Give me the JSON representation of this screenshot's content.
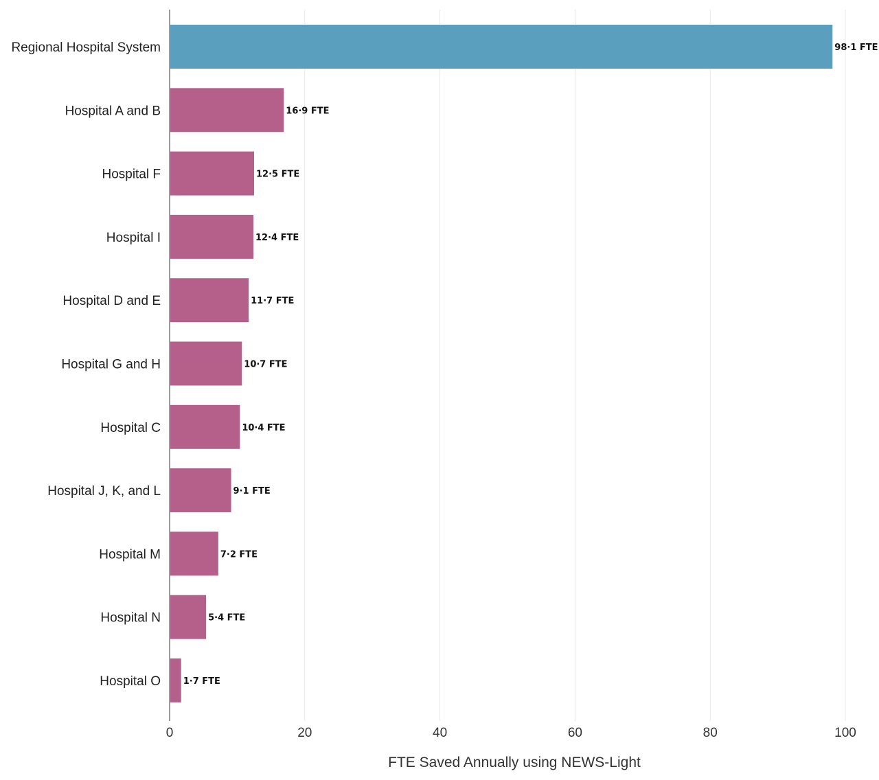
{
  "chart_data": {
    "type": "bar",
    "orientation": "horizontal",
    "categories": [
      "Regional Hospital System",
      "Hospital A and B",
      "Hospital F",
      "Hospital I",
      "Hospital D and E",
      "Hospital G and H",
      "Hospital C",
      "Hospital J, K, and L",
      "Hospital M",
      "Hospital N",
      "Hospital O"
    ],
    "values": [
      98.1,
      16.9,
      12.5,
      12.4,
      11.7,
      10.7,
      10.4,
      9.1,
      7.2,
      5.4,
      1.7
    ],
    "value_labels": [
      "98·1 FTE",
      "16·9 FTE",
      "12·5 FTE",
      "12·4 FTE",
      "11·7 FTE",
      "10·7 FTE",
      "10·4 FTE",
      "9·1 FTE",
      "7·2 FTE",
      "5·4 FTE",
      "1·7 FTE"
    ],
    "bar_colors": [
      "#5b9fbe",
      "#b5608b",
      "#b5608b",
      "#b5608b",
      "#b5608b",
      "#b5608b",
      "#b5608b",
      "#b5608b",
      "#b5608b",
      "#b5608b",
      "#b5608b"
    ],
    "title": "",
    "xlabel": "FTE Saved Annually using NEWS-Light",
    "ylabel": "",
    "xlim": [
      0,
      100
    ],
    "xticks": [
      0,
      20,
      40,
      60,
      80,
      100
    ],
    "xtick_labels": [
      "0",
      "20",
      "40",
      "60",
      "80",
      "100"
    ],
    "grid": "vertical",
    "legend": "none"
  }
}
